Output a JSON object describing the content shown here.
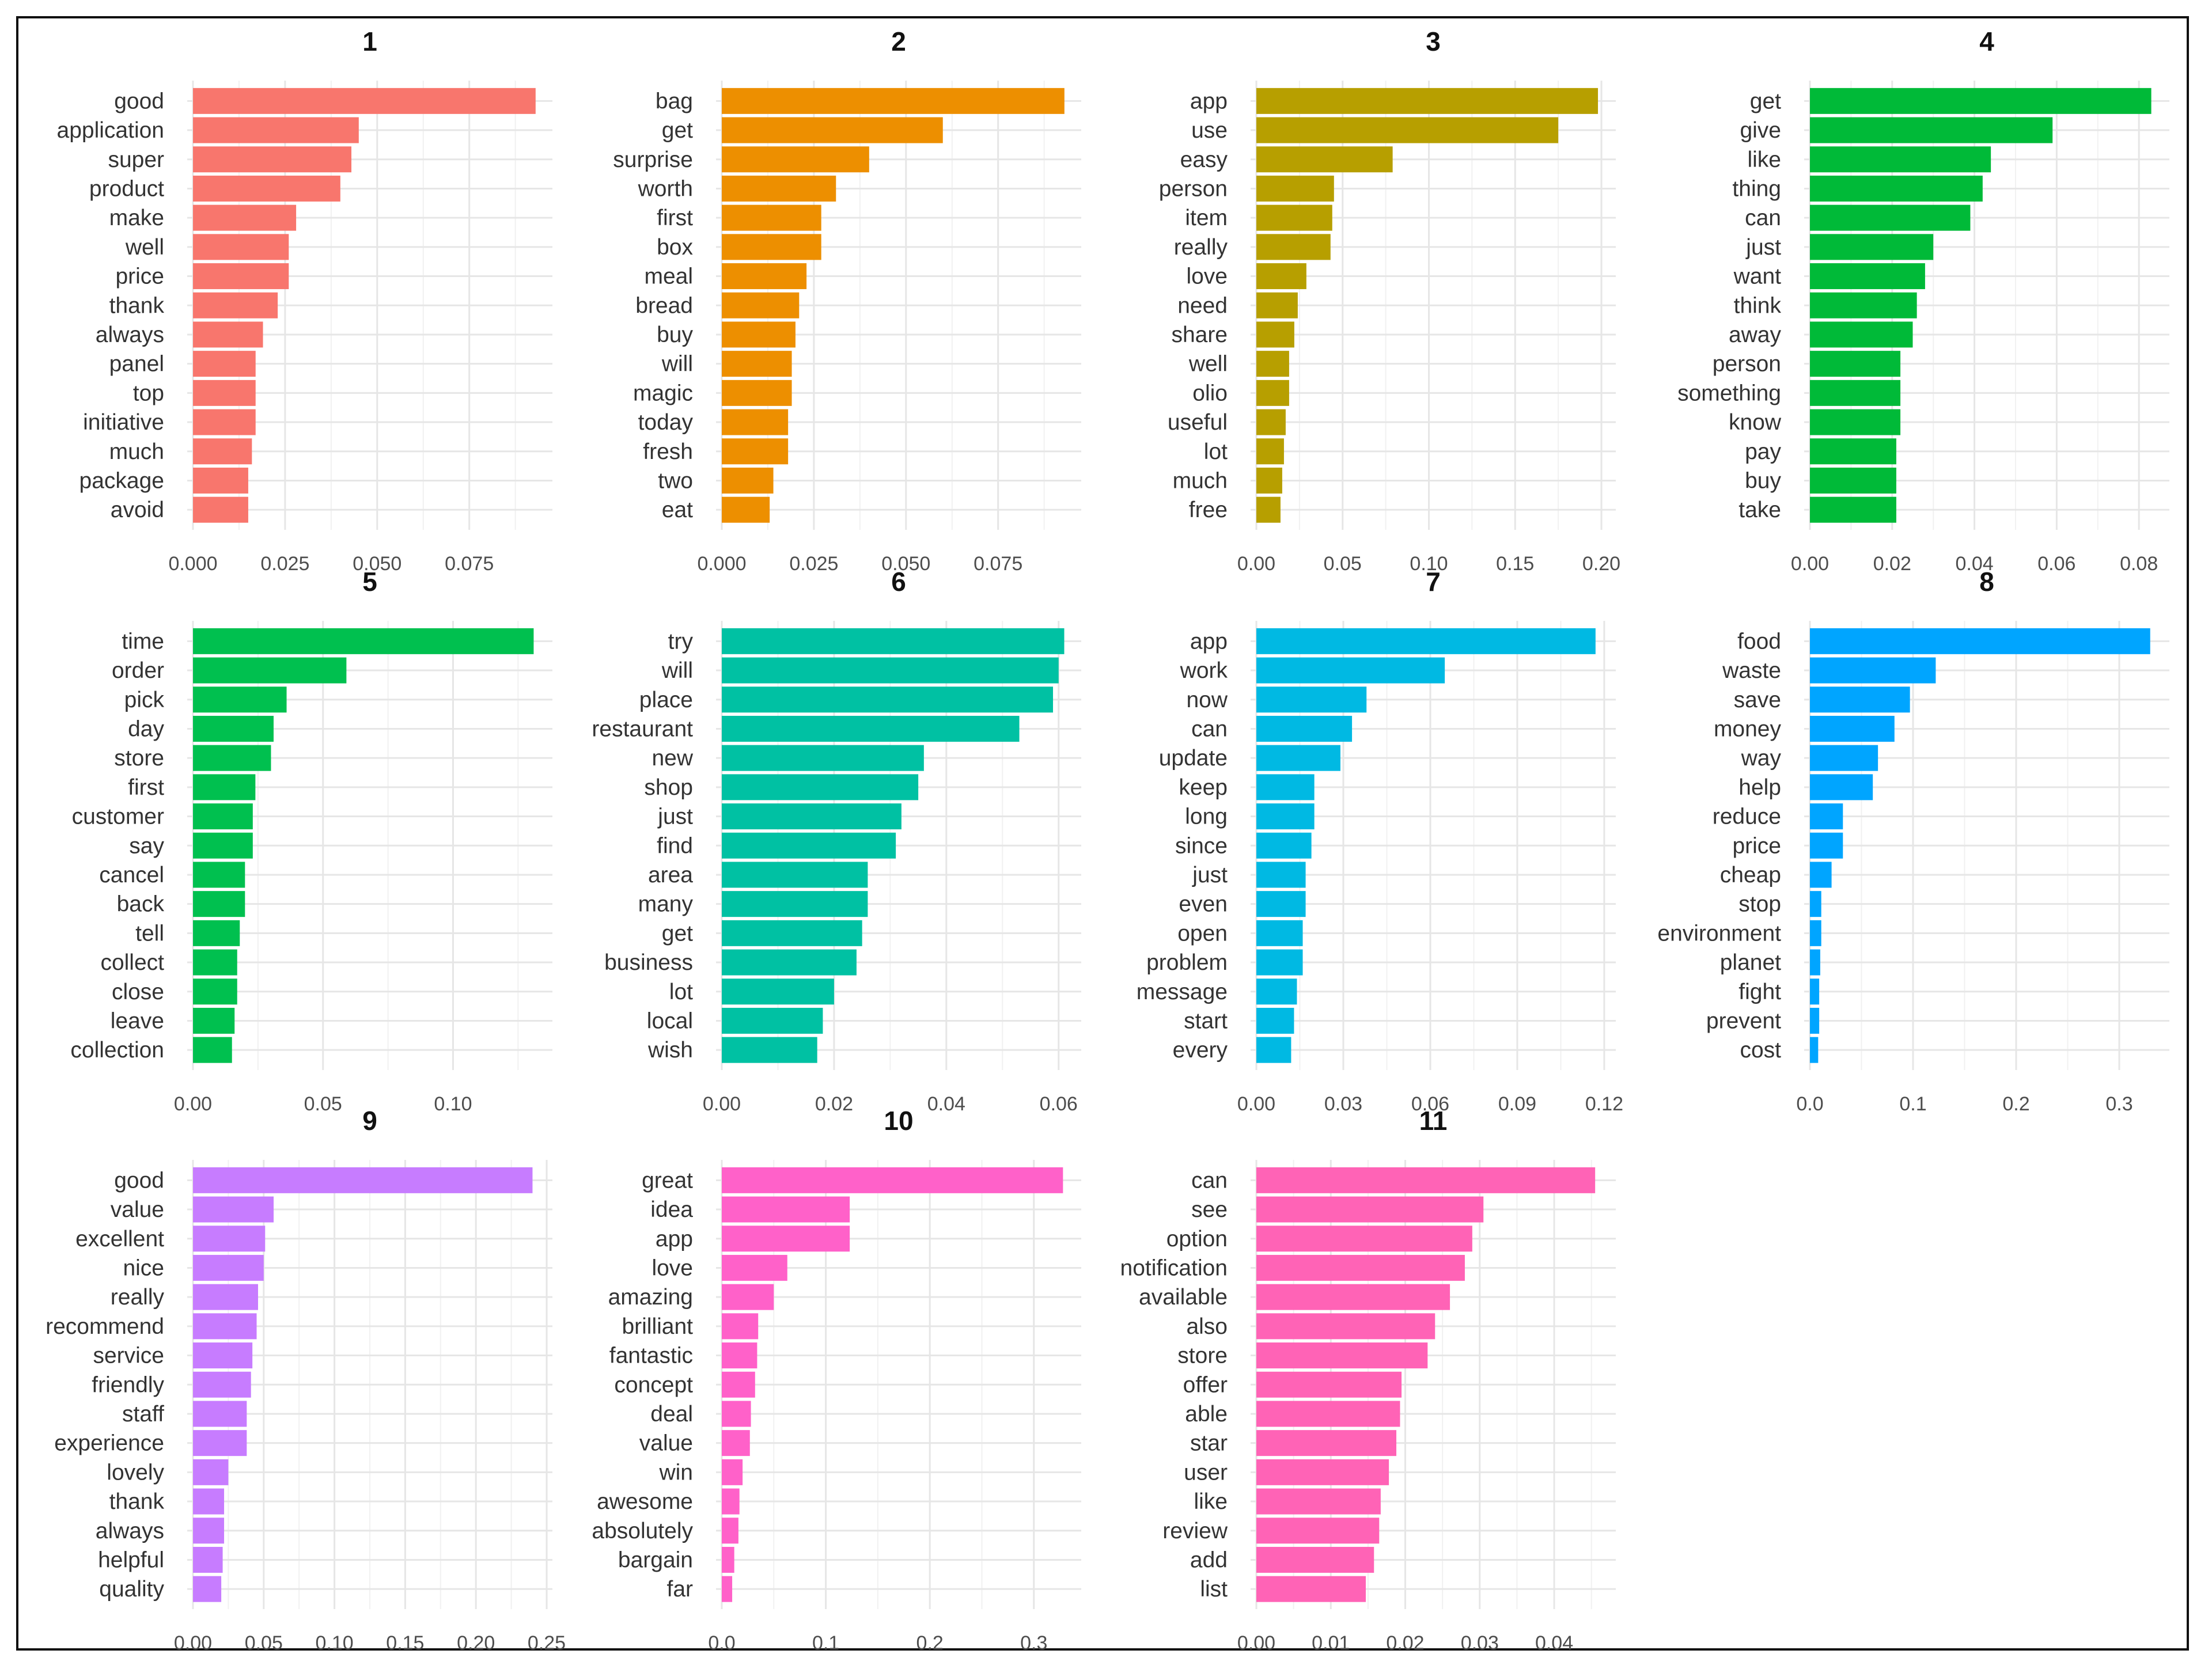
{
  "chart_data": [
    {
      "type": "bar",
      "orientation": "horizontal",
      "title": "1",
      "color": "#F8766D",
      "categories": [
        "good",
        "application",
        "super",
        "product",
        "make",
        "well",
        "price",
        "thank",
        "always",
        "panel",
        "top",
        "initiative",
        "much",
        "package",
        "avoid"
      ],
      "values": [
        0.093,
        0.045,
        0.043,
        0.04,
        0.028,
        0.026,
        0.026,
        0.023,
        0.019,
        0.017,
        0.017,
        0.017,
        0.016,
        0.015,
        0.015
      ],
      "xlim": [
        0,
        0.096
      ],
      "ticks": [
        0,
        0.025,
        0.05,
        0.075
      ],
      "tick_labels": [
        "0.000",
        "0.025",
        "0.050",
        "0.075"
      ]
    },
    {
      "type": "bar",
      "orientation": "horizontal",
      "title": "2",
      "color": "#ED8F00",
      "categories": [
        "bag",
        "get",
        "surprise",
        "worth",
        "first",
        "box",
        "meal",
        "bread",
        "buy",
        "will",
        "magic",
        "today",
        "fresh",
        "two",
        "eat"
      ],
      "values": [
        0.093,
        0.06,
        0.04,
        0.031,
        0.027,
        0.027,
        0.023,
        0.021,
        0.02,
        0.019,
        0.019,
        0.018,
        0.018,
        0.014,
        0.013
      ],
      "xlim": [
        0,
        0.096
      ],
      "ticks": [
        0,
        0.025,
        0.05,
        0.075
      ],
      "tick_labels": [
        "0.000",
        "0.025",
        "0.050",
        "0.075"
      ]
    },
    {
      "type": "bar",
      "orientation": "horizontal",
      "title": "3",
      "color": "#B79F00",
      "categories": [
        "app",
        "use",
        "easy",
        "person",
        "item",
        "really",
        "love",
        "need",
        "share",
        "well",
        "olio",
        "useful",
        "lot",
        "much",
        "free"
      ],
      "values": [
        0.198,
        0.175,
        0.079,
        0.045,
        0.044,
        0.043,
        0.029,
        0.024,
        0.022,
        0.019,
        0.019,
        0.017,
        0.016,
        0.015,
        0.014
      ],
      "xlim": [
        0,
        0.205
      ],
      "ticks": [
        0,
        0.05,
        0.1,
        0.15,
        0.2
      ],
      "tick_labels": [
        "0.00",
        "0.05",
        "0.10",
        "0.15",
        "0.20"
      ]
    },
    {
      "type": "bar",
      "orientation": "horizontal",
      "title": "4",
      "color": "#00BA38",
      "categories": [
        "get",
        "give",
        "like",
        "thing",
        "can",
        "just",
        "want",
        "think",
        "away",
        "person",
        "something",
        "know",
        "pay",
        "buy",
        "take"
      ],
      "values": [
        0.083,
        0.059,
        0.044,
        0.042,
        0.039,
        0.03,
        0.028,
        0.026,
        0.025,
        0.022,
        0.022,
        0.022,
        0.021,
        0.021,
        0.021
      ],
      "xlim": [
        0,
        0.086
      ],
      "ticks": [
        0,
        0.02,
        0.04,
        0.06,
        0.08
      ],
      "tick_labels": [
        "0.00",
        "0.02",
        "0.04",
        "0.06",
        "0.08"
      ]
    },
    {
      "type": "bar",
      "orientation": "horizontal",
      "title": "5",
      "color": "#00C04F",
      "categories": [
        "time",
        "order",
        "pick",
        "day",
        "store",
        "first",
        "customer",
        "say",
        "cancel",
        "back",
        "tell",
        "collect",
        "close",
        "leave",
        "collection"
      ],
      "values": [
        0.131,
        0.059,
        0.036,
        0.031,
        0.03,
        0.024,
        0.023,
        0.023,
        0.02,
        0.02,
        0.018,
        0.017,
        0.017,
        0.016,
        0.015
      ],
      "xlim": [
        0,
        0.136
      ],
      "ticks": [
        0,
        0.05,
        0.1
      ],
      "tick_labels": [
        "0.00",
        "0.05",
        "0.10"
      ]
    },
    {
      "type": "bar",
      "orientation": "horizontal",
      "title": "6",
      "color": "#00C1A3",
      "categories": [
        "try",
        "will",
        "place",
        "restaurant",
        "new",
        "shop",
        "just",
        "find",
        "area",
        "many",
        "get",
        "business",
        "lot",
        "local",
        "wish"
      ],
      "values": [
        0.061,
        0.06,
        0.059,
        0.053,
        0.036,
        0.035,
        0.032,
        0.031,
        0.026,
        0.026,
        0.025,
        0.024,
        0.02,
        0.018,
        0.017
      ],
      "xlim": [
        0,
        0.063
      ],
      "ticks": [
        0,
        0.02,
        0.04,
        0.06
      ],
      "tick_labels": [
        "0.00",
        "0.02",
        "0.04",
        "0.06"
      ]
    },
    {
      "type": "bar",
      "orientation": "horizontal",
      "title": "7",
      "color": "#00B9E3",
      "categories": [
        "app",
        "work",
        "now",
        "can",
        "update",
        "keep",
        "long",
        "since",
        "just",
        "even",
        "open",
        "problem",
        "message",
        "start",
        "every"
      ],
      "values": [
        0.117,
        0.065,
        0.038,
        0.033,
        0.029,
        0.02,
        0.02,
        0.019,
        0.017,
        0.017,
        0.016,
        0.016,
        0.014,
        0.013,
        0.012
      ],
      "xlim": [
        0,
        0.122
      ],
      "ticks": [
        0,
        0.03,
        0.06,
        0.09,
        0.12
      ],
      "tick_labels": [
        "0.00",
        "0.03",
        "0.06",
        "0.09",
        "0.12"
      ]
    },
    {
      "type": "bar",
      "orientation": "horizontal",
      "title": "8",
      "color": "#00A5FF",
      "categories": [
        "food",
        "waste",
        "save",
        "money",
        "way",
        "help",
        "reduce",
        "price",
        "cheap",
        "stop",
        "environment",
        "planet",
        "fight",
        "prevent",
        "cost"
      ],
      "values": [
        0.33,
        0.122,
        0.097,
        0.082,
        0.066,
        0.061,
        0.032,
        0.032,
        0.021,
        0.011,
        0.011,
        0.01,
        0.009,
        0.009,
        0.008
      ],
      "xlim": [
        0,
        0.343
      ],
      "ticks": [
        0,
        0.1,
        0.2,
        0.3
      ],
      "tick_labels": [
        "0.0",
        "0.1",
        "0.2",
        "0.3"
      ]
    },
    {
      "type": "bar",
      "orientation": "horizontal",
      "title": "9",
      "color": "#C77CFF",
      "categories": [
        "good",
        "value",
        "excellent",
        "nice",
        "really",
        "recommend",
        "service",
        "friendly",
        "staff",
        "experience",
        "lovely",
        "thank",
        "always",
        "helpful",
        "quality"
      ],
      "values": [
        0.24,
        0.057,
        0.051,
        0.05,
        0.046,
        0.045,
        0.042,
        0.041,
        0.038,
        0.038,
        0.025,
        0.022,
        0.022,
        0.021,
        0.02
      ],
      "xlim": [
        0,
        0.25
      ],
      "ticks": [
        0,
        0.05,
        0.1,
        0.15,
        0.2,
        0.25
      ],
      "tick_labels": [
        "0.00",
        "0.05",
        "0.10",
        "0.15",
        "0.20",
        "0.25"
      ]
    },
    {
      "type": "bar",
      "orientation": "horizontal",
      "title": "10",
      "color": "#FF61C9",
      "categories": [
        "great",
        "idea",
        "app",
        "love",
        "amazing",
        "brilliant",
        "fantastic",
        "concept",
        "deal",
        "value",
        "win",
        "awesome",
        "absolutely",
        "bargain",
        "far"
      ],
      "values": [
        0.328,
        0.123,
        0.123,
        0.063,
        0.05,
        0.035,
        0.034,
        0.032,
        0.028,
        0.027,
        0.02,
        0.017,
        0.016,
        0.012,
        0.01
      ],
      "xlim": [
        0,
        0.34
      ],
      "ticks": [
        0,
        0.1,
        0.2,
        0.3
      ],
      "tick_labels": [
        "0.0",
        "0.1",
        "0.2",
        "0.3"
      ]
    },
    {
      "type": "bar",
      "orientation": "horizontal",
      "title": "11",
      "color": "#FF63B6",
      "categories": [
        "can",
        "see",
        "option",
        "notification",
        "available",
        "also",
        "store",
        "offer",
        "able",
        "star",
        "user",
        "like",
        "review",
        "add",
        "list"
      ],
      "values": [
        0.0455,
        0.0305,
        0.029,
        0.028,
        0.026,
        0.024,
        0.023,
        0.0195,
        0.0193,
        0.0188,
        0.0178,
        0.0167,
        0.0165,
        0.0158,
        0.0147
      ],
      "xlim": [
        0,
        0.0475
      ],
      "ticks": [
        0,
        0.01,
        0.02,
        0.03,
        0.04
      ],
      "tick_labels": [
        "0.00",
        "0.01",
        "0.02",
        "0.03",
        "0.04"
      ]
    }
  ]
}
